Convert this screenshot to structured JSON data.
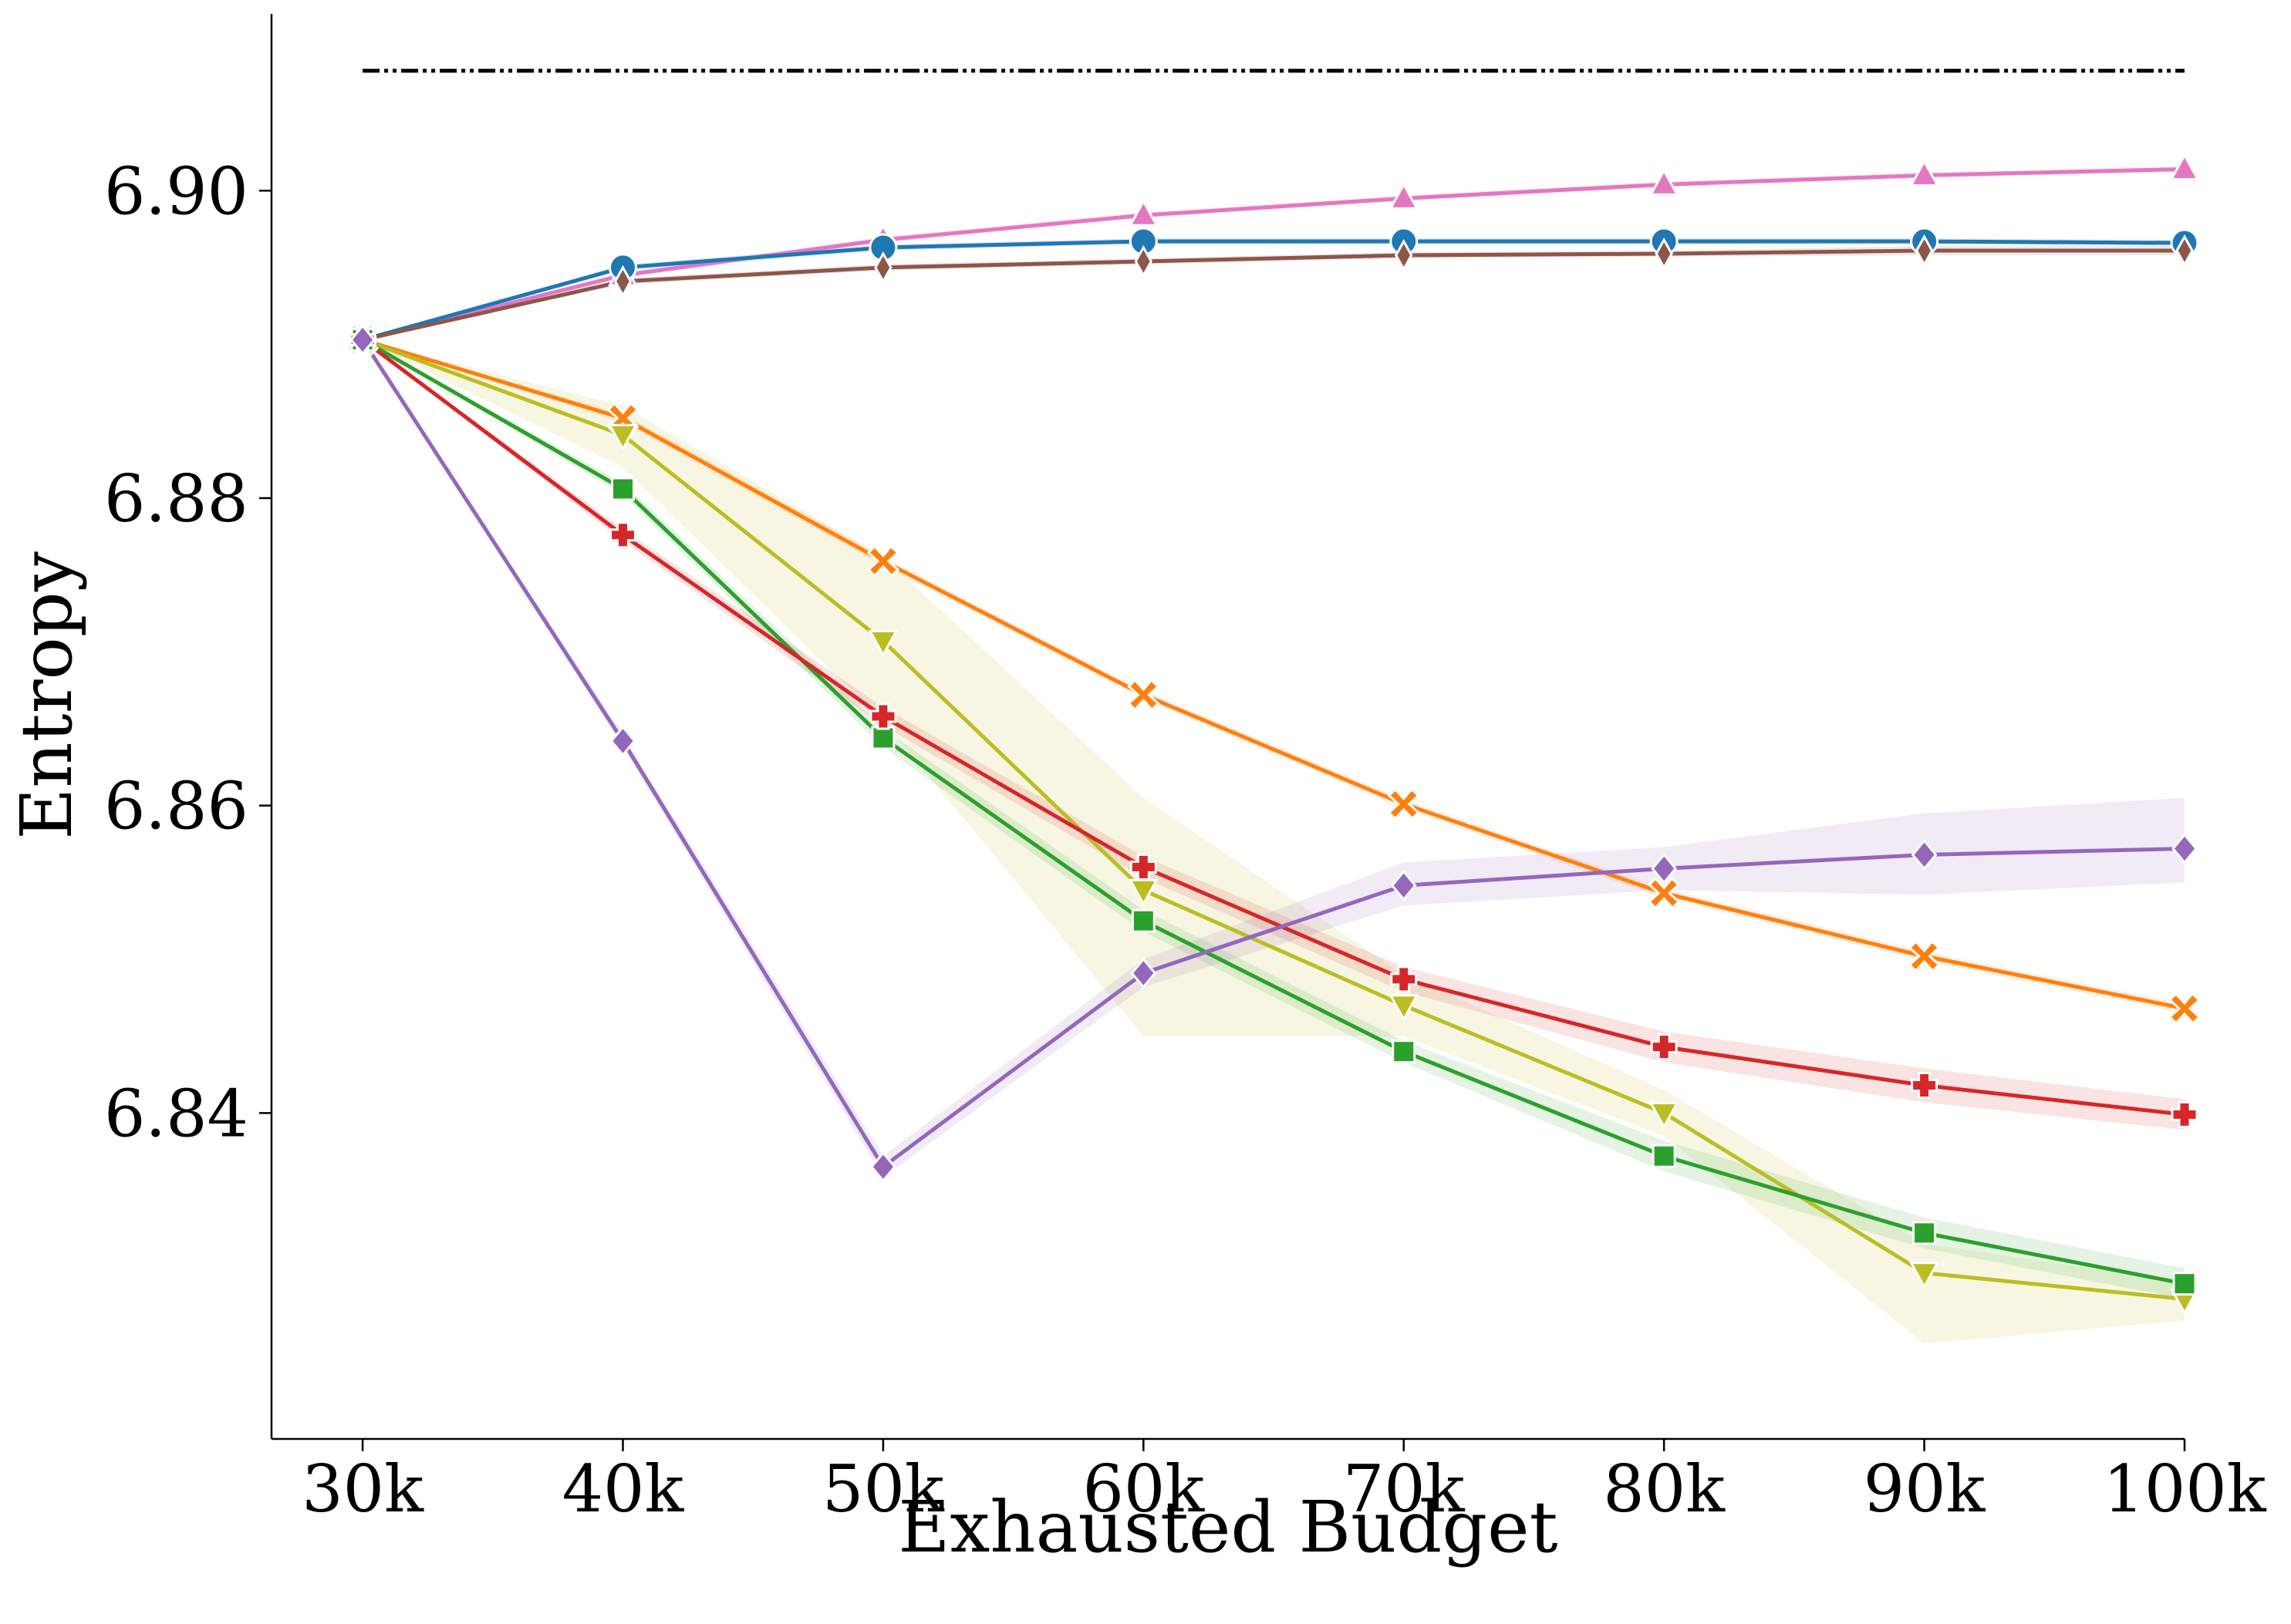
{
  "chart_data": {
    "type": "line",
    "xlabel": "Exhausted Budget",
    "ylabel": "Entropy",
    "x": [
      30,
      40,
      50,
      60,
      70,
      80,
      90,
      100
    ],
    "x_tick_labels": [
      "30k",
      "40k",
      "50k",
      "60k",
      "70k",
      "80k",
      "90k",
      "100k"
    ],
    "y_ticks": [
      6.84,
      6.86,
      6.88,
      6.9
    ],
    "y_tick_labels": [
      "6.84",
      "6.86",
      "6.88",
      "6.90"
    ],
    "xlim": [
      26.5,
      100
    ],
    "ylim": [
      6.8188,
      6.9115
    ],
    "grid": false,
    "legend": "none",
    "reference_line": {
      "y": 6.9078,
      "x_range": [
        30,
        100
      ],
      "color": "#000000",
      "style": "dash-dot-dot"
    },
    "series": [
      {
        "color": "#e377c2",
        "marker": "triangle-up",
        "values": [
          6.8903,
          6.8945,
          6.8968,
          6.8984,
          6.8995,
          6.9004,
          6.901,
          6.9014
        ],
        "band": [
          [
            6.8903,
            6.8903
          ],
          [
            6.8943,
            6.8947
          ],
          [
            6.8966,
            6.897
          ],
          [
            6.8982,
            6.8986
          ],
          [
            6.8993,
            6.8997
          ],
          [
            6.9002,
            6.9006
          ],
          [
            6.9008,
            6.9012
          ],
          [
            6.9012,
            6.9016
          ]
        ]
      },
      {
        "color": "#1f77b4",
        "marker": "circle",
        "values": [
          6.8903,
          6.895,
          6.8963,
          6.8967,
          6.8967,
          6.8967,
          6.8967,
          6.8966
        ],
        "band": [
          [
            6.8903,
            6.8903
          ],
          [
            6.8948,
            6.8952
          ],
          [
            6.8961,
            6.8965
          ],
          [
            6.8965,
            6.8969
          ],
          [
            6.8965,
            6.8969
          ],
          [
            6.8965,
            6.8969
          ],
          [
            6.8965,
            6.8969
          ],
          [
            6.8964,
            6.8968
          ]
        ]
      },
      {
        "color": "#8c564b",
        "marker": "thin-diamond",
        "values": [
          6.8903,
          6.8941,
          6.895,
          6.8954,
          6.8958,
          6.8959,
          6.8961,
          6.8961
        ],
        "band": [
          [
            6.8903,
            6.8903
          ],
          [
            6.8939,
            6.8943
          ],
          [
            6.8948,
            6.8952
          ],
          [
            6.8952,
            6.8956
          ],
          [
            6.8956,
            6.896
          ],
          [
            6.8957,
            6.8961
          ],
          [
            6.8958,
            6.8964
          ],
          [
            6.8958,
            6.8964
          ]
        ]
      },
      {
        "color": "#ff7f0e",
        "marker": "x",
        "values": [
          6.8903,
          6.8852,
          6.8759,
          6.8672,
          6.8601,
          6.8543,
          6.8502,
          6.8468
        ],
        "band": [
          [
            6.8903,
            6.8903
          ],
          [
            6.8849,
            6.8855
          ],
          [
            6.8756,
            6.8762
          ],
          [
            6.8669,
            6.8675
          ],
          [
            6.8598,
            6.8604
          ],
          [
            6.854,
            6.8546
          ],
          [
            6.8499,
            6.8505
          ],
          [
            6.8465,
            6.8471
          ]
        ]
      },
      {
        "color": "#bcbd22",
        "marker": "triangle-down",
        "values": [
          6.8903,
          6.8841,
          6.8707,
          6.8545,
          6.847,
          6.84,
          6.8296,
          6.8279
        ],
        "band": [
          [
            6.8903,
            6.8903
          ],
          [
            6.882,
            6.886
          ],
          [
            6.8655,
            6.8762
          ],
          [
            6.845,
            6.8605
          ],
          [
            6.845,
            6.849
          ],
          [
            6.8385,
            6.8415
          ],
          [
            6.825,
            6.8315
          ],
          [
            6.8265,
            6.829
          ]
        ]
      },
      {
        "color": "#2ca02c",
        "marker": "square",
        "values": [
          6.8903,
          6.8806,
          6.8644,
          6.8525,
          6.844,
          6.8372,
          6.8322,
          6.8289
        ],
        "band": [
          [
            6.8903,
            6.8903
          ],
          [
            6.8802,
            6.881
          ],
          [
            6.8638,
            6.865
          ],
          [
            6.8518,
            6.8532
          ],
          [
            6.8433,
            6.8447
          ],
          [
            6.8362,
            6.8382
          ],
          [
            6.8312,
            6.8332
          ],
          [
            6.8279,
            6.8299
          ]
        ]
      },
      {
        "color": "#d62728",
        "marker": "plus",
        "values": [
          6.8903,
          6.8776,
          6.8658,
          6.856,
          6.8487,
          6.8443,
          6.8418,
          6.8399
        ],
        "band": [
          [
            6.8903,
            6.8903
          ],
          [
            6.8772,
            6.878
          ],
          [
            6.8652,
            6.8664
          ],
          [
            6.8553,
            6.8567
          ],
          [
            6.8479,
            6.8495
          ],
          [
            6.8433,
            6.8453
          ],
          [
            6.8407,
            6.8429
          ],
          [
            6.8389,
            6.8409
          ]
        ]
      },
      {
        "color": "#9467bd",
        "marker": "diamond",
        "values": [
          6.8903,
          6.8642,
          6.8365,
          6.8491,
          6.8548,
          6.8559,
          6.8568,
          6.8572
        ],
        "band": [
          [
            6.8903,
            6.8903
          ],
          [
            6.8638,
            6.8646
          ],
          [
            6.8358,
            6.8372
          ],
          [
            6.8482,
            6.85
          ],
          [
            6.8535,
            6.8563
          ],
          [
            6.8545,
            6.8573
          ],
          [
            6.8542,
            6.8595
          ],
          [
            6.855,
            6.8605
          ]
        ]
      }
    ]
  }
}
